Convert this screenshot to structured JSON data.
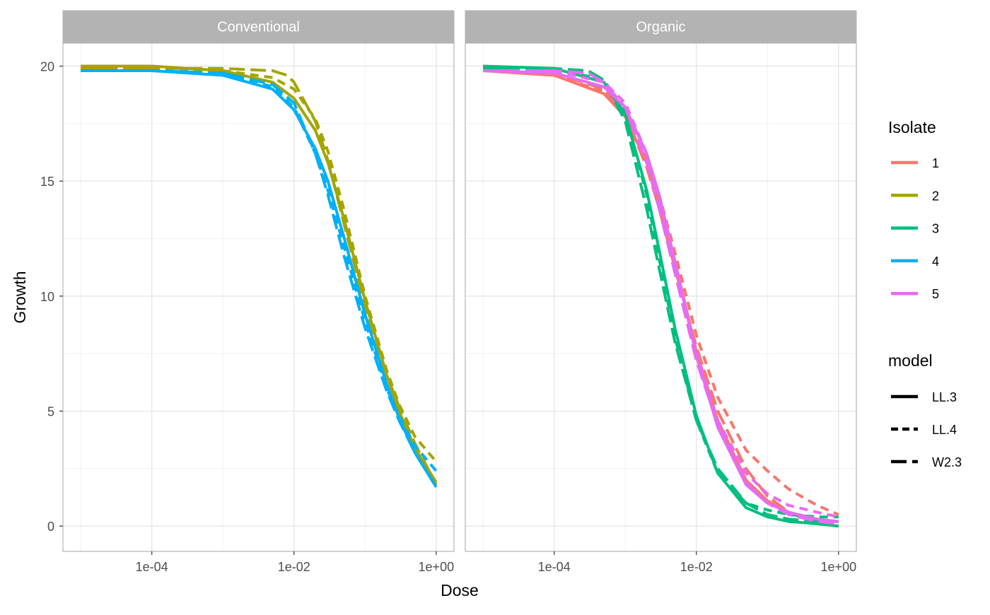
{
  "chart_data": {
    "type": "line",
    "xlabel": "Dose",
    "ylabel": "Growth",
    "x_scale": "log10",
    "xlim": [
      5.62e-06,
      1.78
    ],
    "ylim": [
      -1.1,
      21.0
    ],
    "x_ticks": [
      {
        "value": 0.0001,
        "label": "1e-04"
      },
      {
        "value": 0.01,
        "label": "1e-02"
      },
      {
        "value": 1,
        "label": "1e+00"
      }
    ],
    "y_ticks": [
      {
        "value": 0,
        "label": "0"
      },
      {
        "value": 5,
        "label": "5"
      },
      {
        "value": 10,
        "label": "10"
      },
      {
        "value": 15,
        "label": "15"
      },
      {
        "value": 20,
        "label": "20"
      }
    ],
    "grid": true,
    "legend_position": "right",
    "legends": {
      "isolate": {
        "title": "Isolate",
        "entries": [
          {
            "label": "1",
            "color": "#F8766D"
          },
          {
            "label": "2",
            "color": "#A3A500"
          },
          {
            "label": "3",
            "color": "#00BF7D"
          },
          {
            "label": "4",
            "color": "#00B0F6"
          },
          {
            "label": "5",
            "color": "#E76BF3"
          }
        ]
      },
      "model": {
        "title": "model",
        "entries": [
          {
            "label": "LL.3",
            "dash": "solid"
          },
          {
            "label": "LL.4",
            "dash": "dashed"
          },
          {
            "label": "W2.3",
            "dash": "longdash"
          }
        ]
      }
    },
    "panels": [
      {
        "title": "Conventional",
        "series": [
          {
            "isolate": "2",
            "model": "LL.3",
            "x": [
              1e-05,
              0.0001,
              0.001,
              0.005,
              0.01,
              0.02,
              0.03,
              0.05,
              0.1,
              0.2,
              0.3,
              0.5,
              1.0
            ],
            "y": [
              20.0,
              20.0,
              19.8,
              19.3,
              18.6,
              17.2,
              15.8,
              13.4,
              9.8,
              6.6,
              5.0,
              3.4,
              1.9
            ]
          },
          {
            "isolate": "2",
            "model": "LL.4",
            "x": [
              1e-05,
              0.0001,
              0.001,
              0.005,
              0.01,
              0.02,
              0.03,
              0.05,
              0.1,
              0.2,
              0.3,
              0.5,
              1.0
            ],
            "y": [
              19.9,
              19.9,
              19.8,
              19.5,
              19.0,
              17.7,
              16.3,
              13.8,
              10.0,
              6.8,
              5.3,
              3.9,
              2.8
            ]
          },
          {
            "isolate": "2",
            "model": "W2.3",
            "x": [
              1e-05,
              0.0001,
              0.001,
              0.005,
              0.008,
              0.01,
              0.02,
              0.03,
              0.05,
              0.1,
              0.2,
              0.3,
              0.5,
              1.0
            ],
            "y": [
              19.9,
              19.9,
              19.9,
              19.8,
              19.6,
              19.3,
              17.6,
              15.9,
              13.2,
              9.6,
              6.6,
              5.2,
              3.6,
              1.8
            ]
          },
          {
            "isolate": "4",
            "model": "LL.3",
            "x": [
              1e-05,
              0.0001,
              0.001,
              0.005,
              0.01,
              0.02,
              0.03,
              0.05,
              0.1,
              0.2,
              0.3,
              0.5,
              1.0
            ],
            "y": [
              19.8,
              19.8,
              19.6,
              19.0,
              18.1,
              16.4,
              15.0,
              12.6,
              9.2,
              6.2,
              4.7,
              3.2,
              1.7
            ]
          },
          {
            "isolate": "4",
            "model": "LL.4",
            "x": [
              1e-05,
              0.0001,
              0.001,
              0.005,
              0.01,
              0.02,
              0.03,
              0.05,
              0.1,
              0.2,
              0.3,
              0.5,
              1.0
            ],
            "y": [
              19.8,
              19.8,
              19.7,
              19.1,
              18.2,
              16.2,
              14.6,
              12.2,
              8.9,
              6.0,
              4.8,
              3.5,
              2.4
            ]
          },
          {
            "isolate": "4",
            "model": "W2.3",
            "x": [
              1e-05,
              0.0001,
              0.001,
              0.005,
              0.01,
              0.02,
              0.03,
              0.05,
              0.1,
              0.2,
              0.3,
              0.5,
              1.0
            ],
            "y": [
              19.8,
              19.8,
              19.7,
              19.2,
              18.4,
              16.2,
              14.4,
              11.8,
              8.6,
              5.9,
              4.6,
              3.2,
              1.7
            ]
          }
        ]
      },
      {
        "title": "Organic",
        "series": [
          {
            "isolate": "1",
            "model": "LL.3",
            "x": [
              1e-05,
              0.0001,
              0.0005,
              0.001,
              0.002,
              0.003,
              0.005,
              0.01,
              0.02,
              0.05,
              0.1,
              0.2,
              0.5,
              1.0
            ],
            "y": [
              19.8,
              19.6,
              18.8,
              17.8,
              15.8,
              14.0,
              11.5,
              7.6,
              4.6,
              2.0,
              1.1,
              0.6,
              0.3,
              0.2
            ]
          },
          {
            "isolate": "1",
            "model": "LL.4",
            "x": [
              1e-05,
              0.0001,
              0.0005,
              0.001,
              0.002,
              0.003,
              0.005,
              0.01,
              0.02,
              0.05,
              0.1,
              0.2,
              0.5,
              1.0
            ],
            "y": [
              19.8,
              19.6,
              18.9,
              18.0,
              16.0,
              14.4,
              11.9,
              8.3,
              5.6,
              3.3,
              2.4,
              1.6,
              0.9,
              0.5
            ]
          },
          {
            "isolate": "1",
            "model": "W2.3",
            "x": [
              1e-05,
              0.0001,
              0.0005,
              0.001,
              0.002,
              0.003,
              0.005,
              0.01,
              0.02,
              0.05,
              0.1,
              0.2,
              0.5,
              1.0
            ],
            "y": [
              19.8,
              19.7,
              19.0,
              17.9,
              15.6,
              13.8,
              11.2,
              7.8,
              5.0,
              2.5,
              1.3,
              0.6,
              0.1,
              0.0
            ]
          },
          {
            "isolate": "3",
            "model": "LL.3",
            "x": [
              1e-05,
              0.0001,
              0.0005,
              0.001,
              0.002,
              0.003,
              0.005,
              0.01,
              0.02,
              0.05,
              0.1,
              0.2,
              0.5,
              1.0
            ],
            "y": [
              20.0,
              19.9,
              19.3,
              17.9,
              14.6,
              12.0,
              8.6,
              4.8,
              2.3,
              0.8,
              0.4,
              0.2,
              0.1,
              0.0
            ]
          },
          {
            "isolate": "3",
            "model": "LL.4",
            "x": [
              1e-05,
              0.0001,
              0.0005,
              0.001,
              0.002,
              0.003,
              0.005,
              0.01,
              0.02,
              0.05,
              0.1,
              0.2,
              0.5,
              1.0
            ],
            "y": [
              19.9,
              19.9,
              19.4,
              18.0,
              14.4,
              11.6,
              8.2,
              4.6,
              2.3,
              1.0,
              0.7,
              0.5,
              0.4,
              0.4
            ]
          },
          {
            "isolate": "3",
            "model": "W2.3",
            "x": [
              1e-05,
              0.0001,
              0.0003,
              0.0005,
              0.001,
              0.002,
              0.003,
              0.005,
              0.01,
              0.02,
              0.05,
              0.1,
              0.2,
              0.5,
              1.0
            ],
            "y": [
              19.9,
              19.9,
              19.8,
              19.4,
              17.6,
              13.8,
              11.2,
              8.0,
              4.6,
              2.5,
              1.0,
              0.5,
              0.3,
              0.2,
              0.2
            ]
          },
          {
            "isolate": "5",
            "model": "LL.3",
            "x": [
              1e-05,
              0.0001,
              0.0005,
              0.001,
              0.002,
              0.003,
              0.005,
              0.01,
              0.02,
              0.05,
              0.1,
              0.2,
              0.5,
              1.0
            ],
            "y": [
              19.8,
              19.7,
              19.1,
              18.2,
              16.2,
              14.4,
              11.5,
              7.4,
              4.3,
              1.8,
              1.0,
              0.6,
              0.3,
              0.2
            ]
          },
          {
            "isolate": "5",
            "model": "LL.4",
            "x": [
              1e-05,
              0.0001,
              0.0005,
              0.001,
              0.002,
              0.003,
              0.005,
              0.01,
              0.02,
              0.05,
              0.1,
              0.2,
              0.5,
              1.0
            ],
            "y": [
              19.8,
              19.8,
              19.3,
              18.4,
              16.2,
              14.3,
              11.4,
              7.5,
              4.6,
              2.3,
              1.4,
              0.9,
              0.6,
              0.4
            ]
          },
          {
            "isolate": "5",
            "model": "W2.3",
            "x": [
              1e-05,
              0.0001,
              0.0003,
              0.0005,
              0.001,
              0.002,
              0.003,
              0.005,
              0.01,
              0.02,
              0.05,
              0.1,
              0.2,
              0.5,
              1.0
            ],
            "y": [
              19.8,
              19.8,
              19.7,
              19.3,
              18.2,
              15.8,
              13.8,
              11.0,
              7.2,
              4.4,
              1.9,
              1.0,
              0.5,
              0.2,
              0.1
            ]
          }
        ]
      }
    ]
  }
}
